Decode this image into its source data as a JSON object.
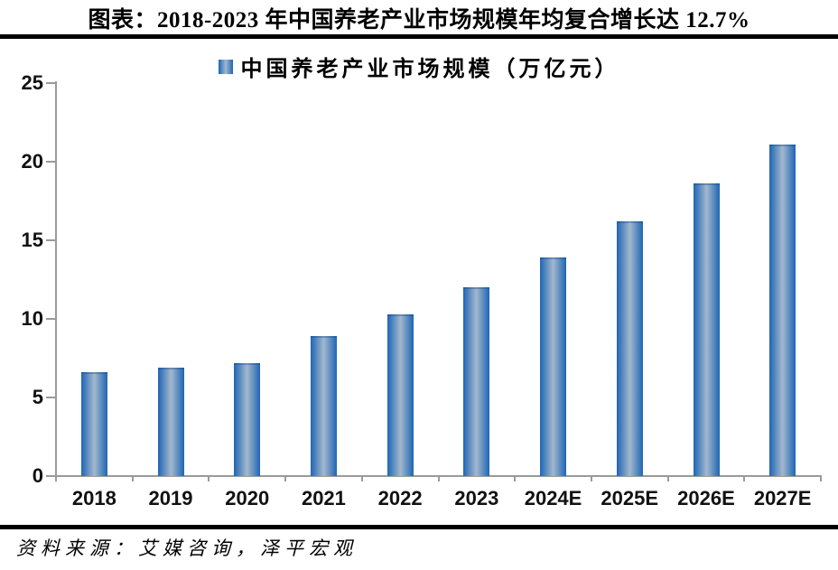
{
  "title": "图表：2018-2023 年中国养老产业市场规模年均复合增长达 12.7%",
  "legend": {
    "label": "中国养老产业市场规模（万亿元）"
  },
  "source": "资料来源：艾媒咨询，泽平宏观",
  "colors": {
    "bar_edge": "#1E65B5",
    "bar_mid": "#A3B8CD",
    "axis": "#9A9A9A",
    "rule": "#000000",
    "text": "#000000"
  },
  "chart_data": {
    "type": "bar",
    "categories": [
      "2018",
      "2019",
      "2020",
      "2021",
      "2022",
      "2023",
      "2024E",
      "2025E",
      "2026E",
      "2027E"
    ],
    "values": [
      6.6,
      6.9,
      7.2,
      8.9,
      10.3,
      12.0,
      13.9,
      16.2,
      18.6,
      21.1
    ],
    "series_name": "中国养老产业市场规模（万亿元）",
    "title": "图表：2018-2023 年中国养老产业市场规模年均复合增长达 12.7%",
    "xlabel": "",
    "ylabel": "",
    "ylim": [
      0,
      25
    ],
    "yticks": [
      0,
      5,
      10,
      15,
      20,
      25
    ],
    "grid": false,
    "legend_position": "top-center"
  }
}
